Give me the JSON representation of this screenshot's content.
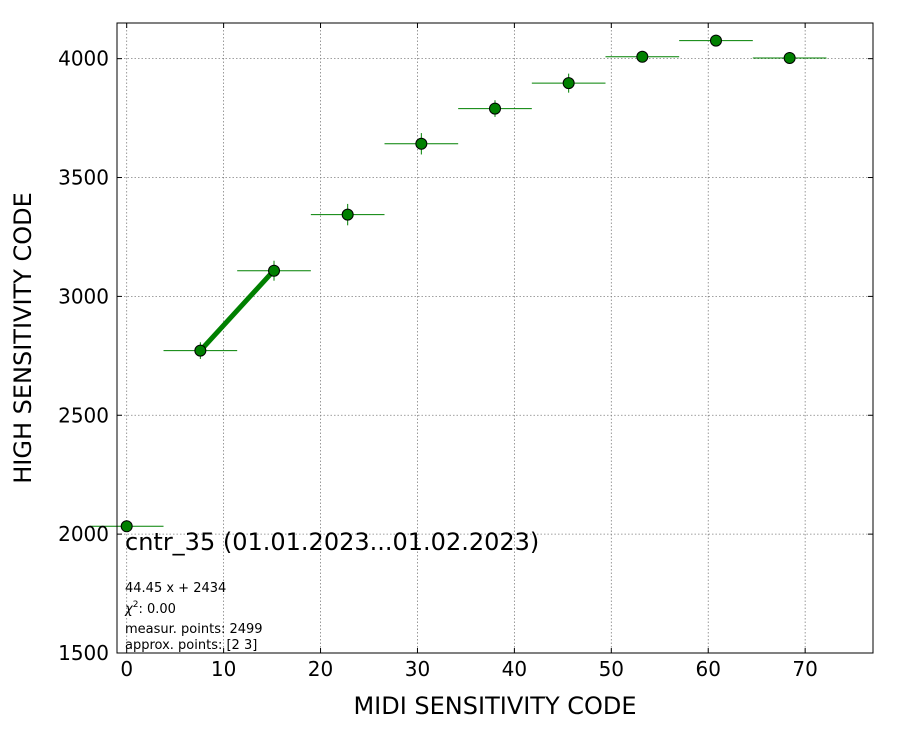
{
  "chart_data": {
    "type": "scatter",
    "xlabel": "MIDI SENSITIVITY CODE",
    "ylabel": "HIGH SENSITIVITY CODE",
    "xlim": [
      -1,
      77
    ],
    "ylim": [
      1500,
      4150
    ],
    "xticks": [
      0,
      10,
      20,
      30,
      40,
      50,
      60,
      70
    ],
    "yticks": [
      1500,
      2000,
      2500,
      3000,
      3500,
      4000
    ],
    "grid": true,
    "points": [
      {
        "x": 0.0,
        "y": 2033,
        "xerr": 3.8,
        "yerr": 0
      },
      {
        "x": 7.6,
        "y": 2772,
        "xerr": 3.8,
        "yerr": 35
      },
      {
        "x": 15.2,
        "y": 3108,
        "xerr": 3.8,
        "yerr": 42
      },
      {
        "x": 22.8,
        "y": 3344,
        "xerr": 3.8,
        "yerr": 45
      },
      {
        "x": 30.4,
        "y": 3642,
        "xerr": 3.8,
        "yerr": 45
      },
      {
        "x": 38.0,
        "y": 3790,
        "xerr": 3.8,
        "yerr": 35
      },
      {
        "x": 45.6,
        "y": 3897,
        "xerr": 3.8,
        "yerr": 40
      },
      {
        "x": 53.2,
        "y": 4008,
        "xerr": 3.8,
        "yerr": 20
      },
      {
        "x": 60.8,
        "y": 4076,
        "xerr": 3.8,
        "yerr": 15
      },
      {
        "x": 68.4,
        "y": 4003,
        "xerr": 3.8,
        "yerr": 25
      }
    ],
    "fit_line": {
      "x": [
        7.6,
        15.2
      ],
      "slope": 44.45,
      "intercept": 2434
    },
    "colors": {
      "marker": "#008000",
      "marker_edge": "#000000",
      "fit": "#008000",
      "grid": "#808080"
    },
    "annotations": {
      "title_text": "cntr_35 (01.01.2023...01.02.2023)",
      "fit_text": "44.45 x + 2434",
      "chi_label": "χ",
      "chi_sup": "2",
      "chi_value": ": 0.00",
      "measur_text": "measur. points: 2499",
      "approx_text": "approx. points: [2 3]"
    }
  }
}
